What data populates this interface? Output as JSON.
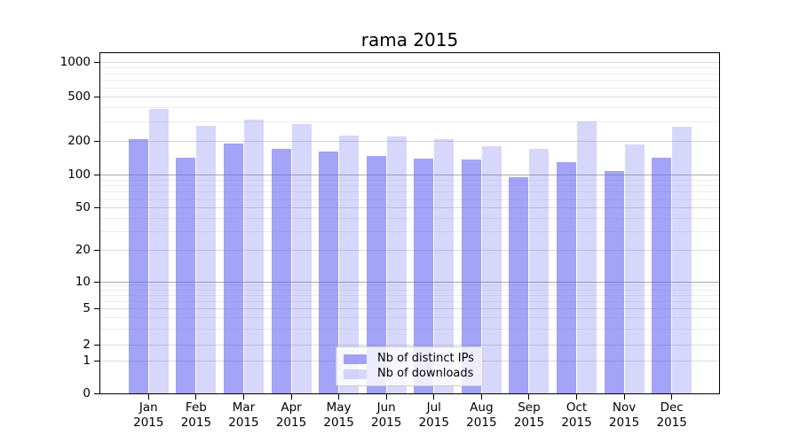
{
  "title": "rama 2015",
  "chart_data": {
    "type": "bar",
    "title": "rama 2015",
    "scale": "symlog",
    "grid": true,
    "legend_position": "lower center",
    "categories": [
      "Jan",
      "Feb",
      "Mar",
      "Apr",
      "May",
      "Jun",
      "Jul",
      "Aug",
      "Sep",
      "Oct",
      "Nov",
      "Dec"
    ],
    "year": "2015",
    "series": [
      {
        "name": "Nb of distinct IPs",
        "color": "#6a6af2",
        "opacity": 0.62,
        "values": [
          210,
          144,
          192,
          173,
          163,
          148,
          141,
          138,
          95,
          131,
          108,
          143
        ]
      },
      {
        "name": "Nb of downloads",
        "color": "#6a6af2",
        "opacity": 0.27,
        "values": [
          390,
          277,
          316,
          285,
          227,
          222,
          212,
          183,
          174,
          306,
          190,
          270
        ]
      }
    ],
    "yticks": [
      0,
      1,
      2,
      5,
      10,
      20,
      50,
      100,
      200,
      500,
      1000
    ],
    "ylim": [
      0,
      1250
    ],
    "xlabel": "",
    "ylabel": ""
  }
}
